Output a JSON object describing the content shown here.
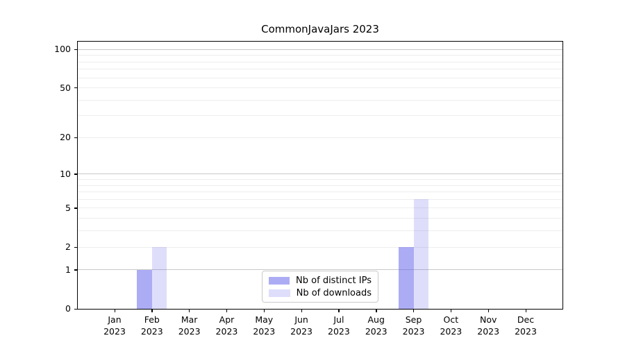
{
  "figure": {
    "background": "#ffffff",
    "spine_color": "#000000",
    "text_color": "#000000"
  },
  "chart_data": {
    "type": "bar",
    "title": "CommonJavaJars 2023",
    "xlabel": "",
    "ylabel": "",
    "x": {
      "categories": [
        "Jan",
        "Feb",
        "Mar",
        "Apr",
        "May",
        "Jun",
        "Jul",
        "Aug",
        "Sep",
        "Oct",
        "Nov",
        "Dec"
      ],
      "year_line": "2023"
    },
    "series": [
      {
        "name": "Nb of distinct IPs",
        "color": "rgba(90,90,235,0.5)",
        "values": [
          0,
          1,
          0,
          0,
          0,
          0,
          0,
          0,
          2,
          0,
          0,
          0
        ]
      },
      {
        "name": "Nb of downloads",
        "color": "rgba(90,90,235,0.2)",
        "values": [
          0,
          2,
          0,
          0,
          0,
          0,
          0,
          0,
          6,
          0,
          0,
          0
        ]
      }
    ],
    "y_axis": {
      "scale": "log1p",
      "ticks": [
        0,
        1,
        2,
        5,
        10,
        20,
        50,
        100
      ],
      "ylim": [
        0,
        115
      ],
      "major_gridlines": [
        1,
        10,
        100
      ],
      "minor_gridlines": [
        2,
        3,
        4,
        5,
        6,
        7,
        8,
        9,
        20,
        30,
        40,
        50,
        60,
        70,
        80,
        90
      ],
      "major_grid_color": "#c8c8c8",
      "minor_grid_color": "#ededed"
    },
    "grid": true,
    "legend": {
      "position": "lower center"
    }
  }
}
